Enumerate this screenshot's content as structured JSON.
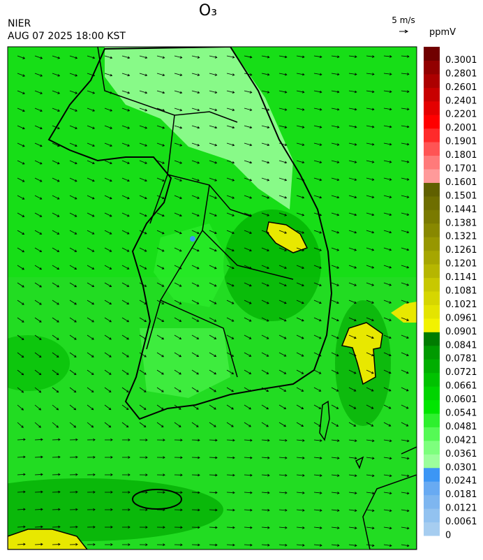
{
  "header": {
    "title": "O₃",
    "source": "NIER",
    "timestamp": "AUG 07 2025 18:00 KST",
    "wind_scale": "5 m/s"
  },
  "colorbar": {
    "unit": "ppmV",
    "labels": [
      0,
      0.0061,
      0.0121,
      0.0181,
      0.0241,
      0.0301,
      0.0361,
      0.0421,
      0.0481,
      0.0541,
      0.0601,
      0.0661,
      0.0721,
      0.0781,
      0.0841,
      0.0901,
      0.0961,
      0.1021,
      0.1081,
      0.1141,
      0.1201,
      0.1261,
      0.1321,
      0.1381,
      0.1441,
      0.1501,
      0.1601,
      0.1701,
      0.1801,
      0.1901,
      0.2001,
      0.2201,
      0.2401,
      0.2601,
      0.2801,
      0.3001
    ],
    "colors": [
      "#a6cdf0",
      "#92c2f0",
      "#7eb6f0",
      "#68aaf2",
      "#3c96f5",
      "#9cff9c",
      "#7dff7d",
      "#55fa55",
      "#2ef02e",
      "#00e600",
      "#00d400",
      "#00c200",
      "#00ae00",
      "#009a00",
      "#007c00",
      "#f2f200",
      "#e4e400",
      "#d6d600",
      "#c8c800",
      "#b6b600",
      "#a6a600",
      "#979700",
      "#888800",
      "#7a7a00",
      "#6e6e00",
      "#606000",
      "#ff9a9a",
      "#ff7a7a",
      "#ff5454",
      "#ff2a2a",
      "#ff0000",
      "#e40000",
      "#c80000",
      "#ac0000",
      "#920000",
      "#700000"
    ]
  }
}
